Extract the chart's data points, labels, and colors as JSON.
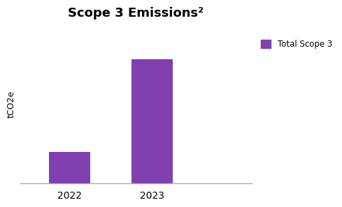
{
  "categories": [
    "2022",
    "2023"
  ],
  "values": [
    0.2,
    0.78
  ],
  "bar_color": "#8040B0",
  "title": "Scope 3 Emissions²",
  "ylabel": "tCO2e",
  "legend_label": "Total Scope 3",
  "bar_width": 0.5,
  "ylim": [
    0,
    1.0
  ],
  "title_fontsize": 13,
  "axis_label_fontsize": 9,
  "tick_fontsize": 10,
  "background_color": "#ffffff",
  "legend_fontsize": 8.5,
  "xlim": [
    -0.6,
    2.2
  ]
}
